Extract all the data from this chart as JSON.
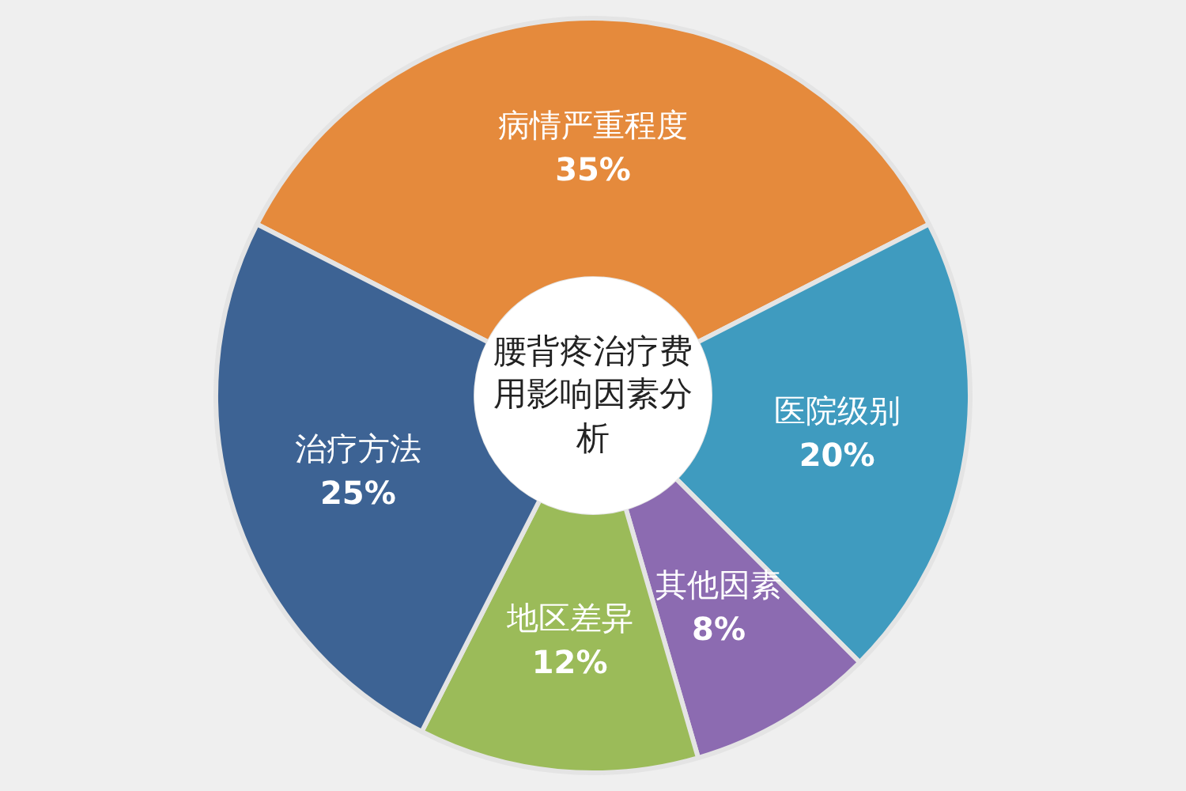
{
  "chart_data": {
    "type": "donut",
    "title": "腰背疼治疗费用影响因素分析",
    "categories": [
      "病情严重程度",
      "医院级别",
      "其他因素",
      "地区差异",
      "治疗方法"
    ],
    "values": [
      35,
      20,
      8,
      12,
      25
    ],
    "value_labels": [
      "35%",
      "20%",
      "8%",
      "12%",
      "25%"
    ],
    "colors": [
      "#e58a3c",
      "#3f9bbf",
      "#8c6bb1",
      "#9bbb59",
      "#3d6394"
    ],
    "legend": false
  }
}
